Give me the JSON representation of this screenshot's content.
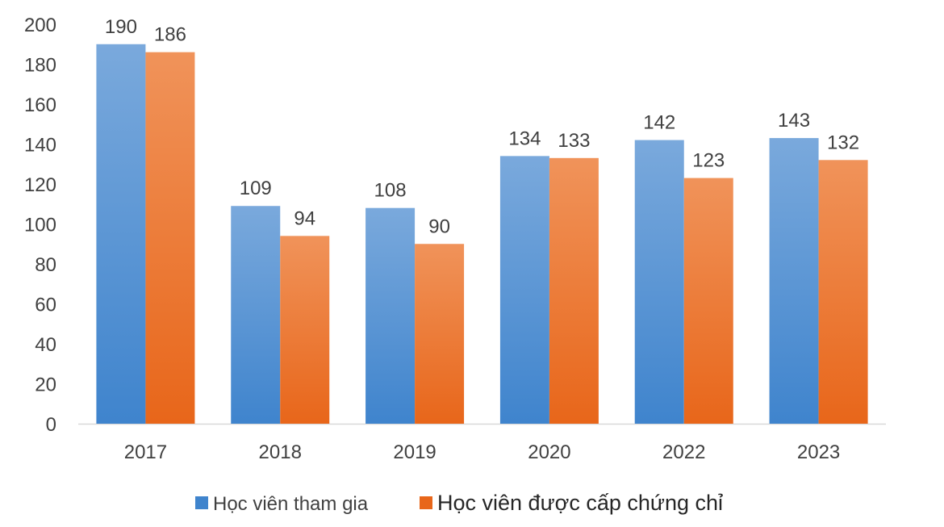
{
  "chart_data": {
    "type": "bar",
    "title": "",
    "xlabel": "",
    "ylabel": "",
    "categories": [
      "2017",
      "2018",
      "2019",
      "2020",
      "2022",
      "2023"
    ],
    "series": [
      {
        "name": "Học viên tham gia",
        "values": [
          190,
          109,
          108,
          134,
          142,
          143
        ],
        "color_top": "#7aa9dc",
        "color_bottom": "#3f84cd"
      },
      {
        "name": "Học viên được cấp chứng chỉ",
        "values": [
          186,
          94,
          90,
          133,
          123,
          132
        ],
        "color_top": "#f0935a",
        "color_bottom": "#e8661a"
      }
    ],
    "ylim": [
      0,
      200
    ],
    "yticks": [
      0,
      20,
      40,
      60,
      80,
      100,
      120,
      140,
      160,
      180,
      200
    ],
    "grid": false,
    "data_labels": true,
    "legend_position": "bottom-center"
  }
}
